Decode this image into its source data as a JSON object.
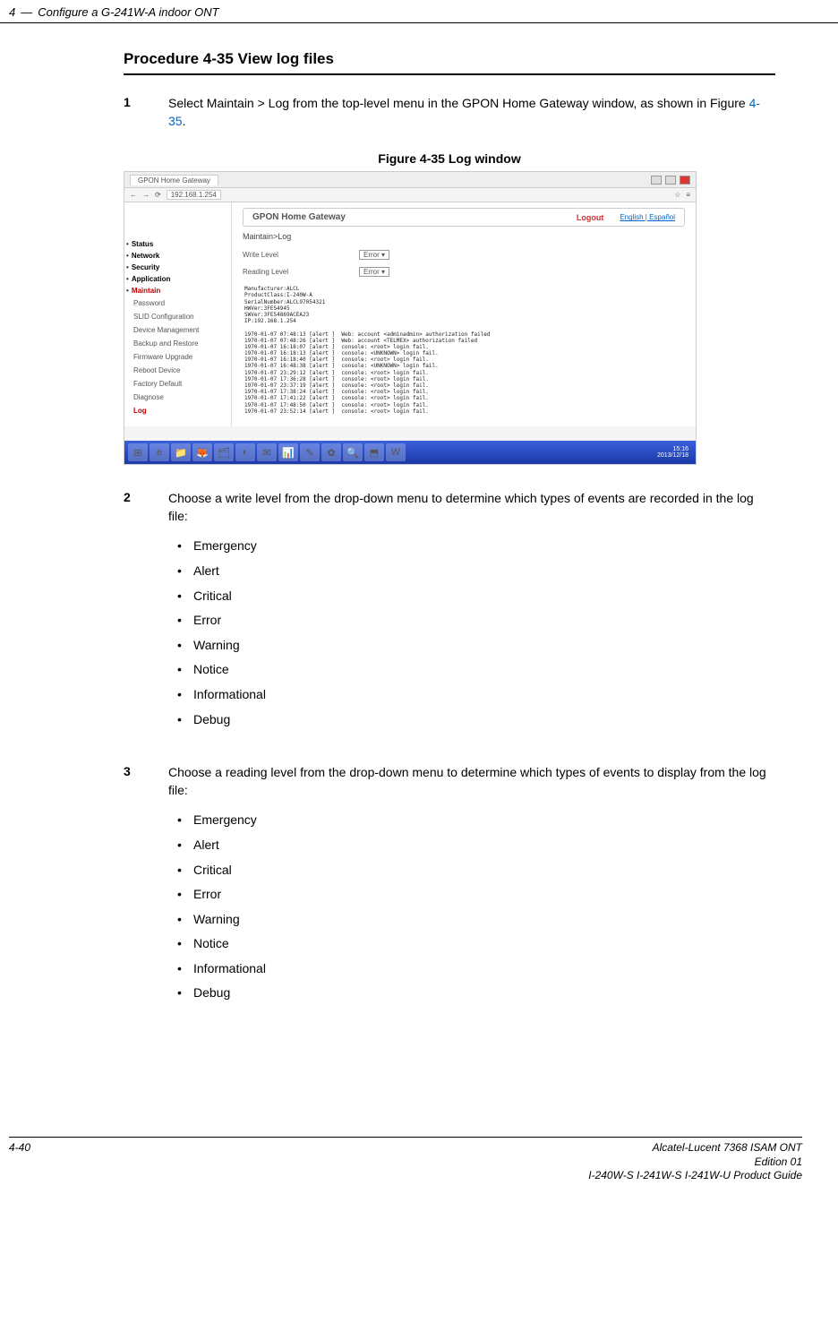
{
  "header": {
    "section_num": "4",
    "dash": "—",
    "section_title": "Configure a G-241W-A indoor ONT"
  },
  "procedure": {
    "title": "Procedure 4-35  View log files"
  },
  "step1": {
    "num": "1",
    "text_a": "Select Maintain > Log from the top-level menu in the GPON Home Gateway window, as shown in Figure ",
    "fig_ref": "4-35",
    "text_b": "."
  },
  "figure_caption": "Figure 4-35  Log window",
  "screenshot": {
    "tab_title": "GPON Home Gateway",
    "address": "192.168.1.254",
    "app_title": "GPON Home Gateway",
    "logout": "Logout",
    "lang": "English | Español",
    "breadcrumb": "Maintain>Log",
    "sidebar": {
      "heads": [
        "Status",
        "Network",
        "Security",
        "Application",
        "Maintain"
      ],
      "subs": [
        "Password",
        "SLID Configuration",
        "Device Management",
        "Backup and Restore",
        "Firmware Upgrade",
        "Reboot Device",
        "Factory Default",
        "Diagnose",
        "Log"
      ]
    },
    "write_level_label": "Write Level",
    "reading_level_label": "Reading Level",
    "select_value": "Error",
    "log_text": "Manufacturer:ALCL\nProductClass:I-240W-A\nSerialNumber:ALCL97054321\nHWVer:3FE54945\nSWVer:3FE54869ACEA23\nIP:192.168.1.254\n\n1970-01-07 07:48:13 [alert ]  Web: account <adminadmin> authorization failed\n1970-01-07 07:48:26 [alert ]  Web: account <TELMEX> authorization failed\n1970-01-07 16:18:07 [alert ]  console: <root> login fail.\n1970-01-07 16:18:13 [alert ]  console: <UNKNOWN> login fail.\n1970-01-07 16:18:40 [alert ]  console: <root> login fail.\n1970-01-07 16:48:38 [alert ]  console: <UNKNOWN> login fail.\n1970-01-07 23:29:12 [alert ]  console: <root> login fail.\n1970-01-07 17:36:28 [alert ]  console: <root> login fail.\n1970-01-07 23:37:19 [alert ]  console: <root> login fail.\n1970-01-07 17:38:24 [alert ]  console: <root> login fail.\n1970-01-07 17:41:22 [alert ]  console: <root> login fail.\n1970-01-07 17:48:50 [alert ]  console: <root> login fail.\n1970-01-07 23:52:14 [alert ]  console: <root> login fail.",
    "clock_time": "15:16",
    "clock_date": "2013/12/18",
    "star": "☆",
    "menu_glyph": "≡",
    "taskbar_icons": [
      "⊞",
      "e",
      "📁",
      "🦊",
      "🗂",
      "◐",
      "✉",
      "📊",
      "✎",
      "✿",
      "🔍",
      "⬒",
      "W"
    ]
  },
  "step2": {
    "num": "2",
    "text": "Choose a write level from the drop-down menu to determine which types of events are recorded in the log file:",
    "levels": [
      "Emergency",
      "Alert",
      "Critical",
      "Error",
      "Warning",
      "Notice",
      "Informational",
      "Debug"
    ]
  },
  "step3": {
    "num": "3",
    "text": "Choose a reading level from the drop-down menu to determine which types of events to display from the log file:",
    "levels": [
      "Emergency",
      "Alert",
      "Critical",
      "Error",
      "Warning",
      "Notice",
      "Informational",
      "Debug"
    ]
  },
  "footer": {
    "page_num": "4-40",
    "line1": "Alcatel-Lucent 7368 ISAM ONT",
    "line2": "Edition 01",
    "line3": "I-240W-S I-241W-S I-241W-U Product Guide"
  }
}
